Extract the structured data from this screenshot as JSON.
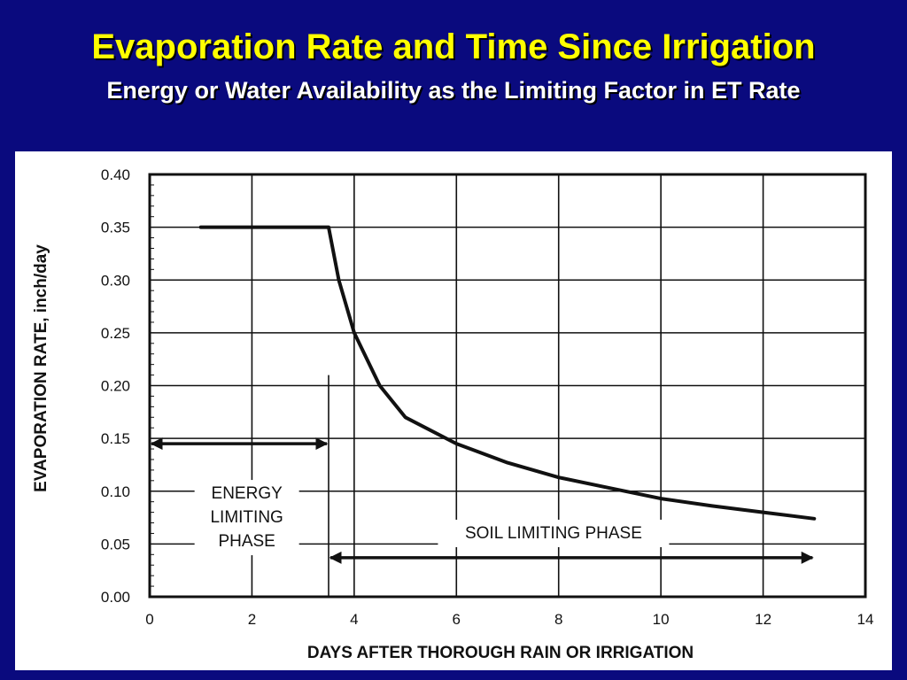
{
  "slide": {
    "title": "Evaporation Rate and Time Since Irrigation",
    "subtitle": "Energy or Water Availability as the Limiting Factor in ET Rate"
  },
  "colors": {
    "background": "#0a0a7e",
    "title": "#ffff00",
    "subtitle": "#ffffff",
    "ink": "#111111"
  },
  "chart_data": {
    "type": "line",
    "title": "",
    "xlabel": "DAYS AFTER THOROUGH RAIN OR IRRIGATION",
    "ylabel": "EVAPORATION RATE, inch/day",
    "xlim": [
      0,
      14
    ],
    "ylim": [
      0,
      0.4
    ],
    "x_ticks": [
      0,
      2,
      4,
      6,
      8,
      10,
      12,
      14
    ],
    "x_tick_labels": [
      "0",
      "2",
      "4",
      "6",
      "8",
      "10",
      "12",
      "14"
    ],
    "y_ticks": [
      0,
      0.05,
      0.1,
      0.15,
      0.2,
      0.25,
      0.3,
      0.35,
      0.4
    ],
    "y_tick_labels": [
      "0.00",
      "0.05",
      "0.10",
      "0.15",
      "0.20",
      "0.25",
      "0.30",
      "0.35",
      "0.40"
    ],
    "grid": true,
    "series": [
      {
        "name": "Evaporation rate",
        "x": [
          1,
          3.5,
          3.7,
          4.0,
          4.5,
          5.0,
          6.0,
          7.0,
          8.0,
          9.0,
          10.0,
          11.0,
          12.0,
          13.0
        ],
        "values": [
          0.35,
          0.35,
          0.3,
          0.25,
          0.2,
          0.17,
          0.145,
          0.127,
          0.113,
          0.103,
          0.093,
          0.086,
          0.08,
          0.074
        ]
      }
    ],
    "phase_boundary_day": 3.5,
    "annotations": [
      {
        "id": "energy",
        "lines": [
          "ENERGY",
          "LIMITING",
          "PHASE"
        ],
        "x": 1.9,
        "y": 0.075
      },
      {
        "id": "soil",
        "lines": [
          "SOIL LIMITING PHASE"
        ],
        "x": 7.9,
        "y": 0.06
      }
    ],
    "arrows": [
      {
        "id": "energy-arrow",
        "x1": 0,
        "x2": 3.5,
        "y": 0.145
      },
      {
        "id": "soil-arrow",
        "x1": 3.5,
        "x2": 13.0,
        "y": 0.037
      }
    ]
  }
}
